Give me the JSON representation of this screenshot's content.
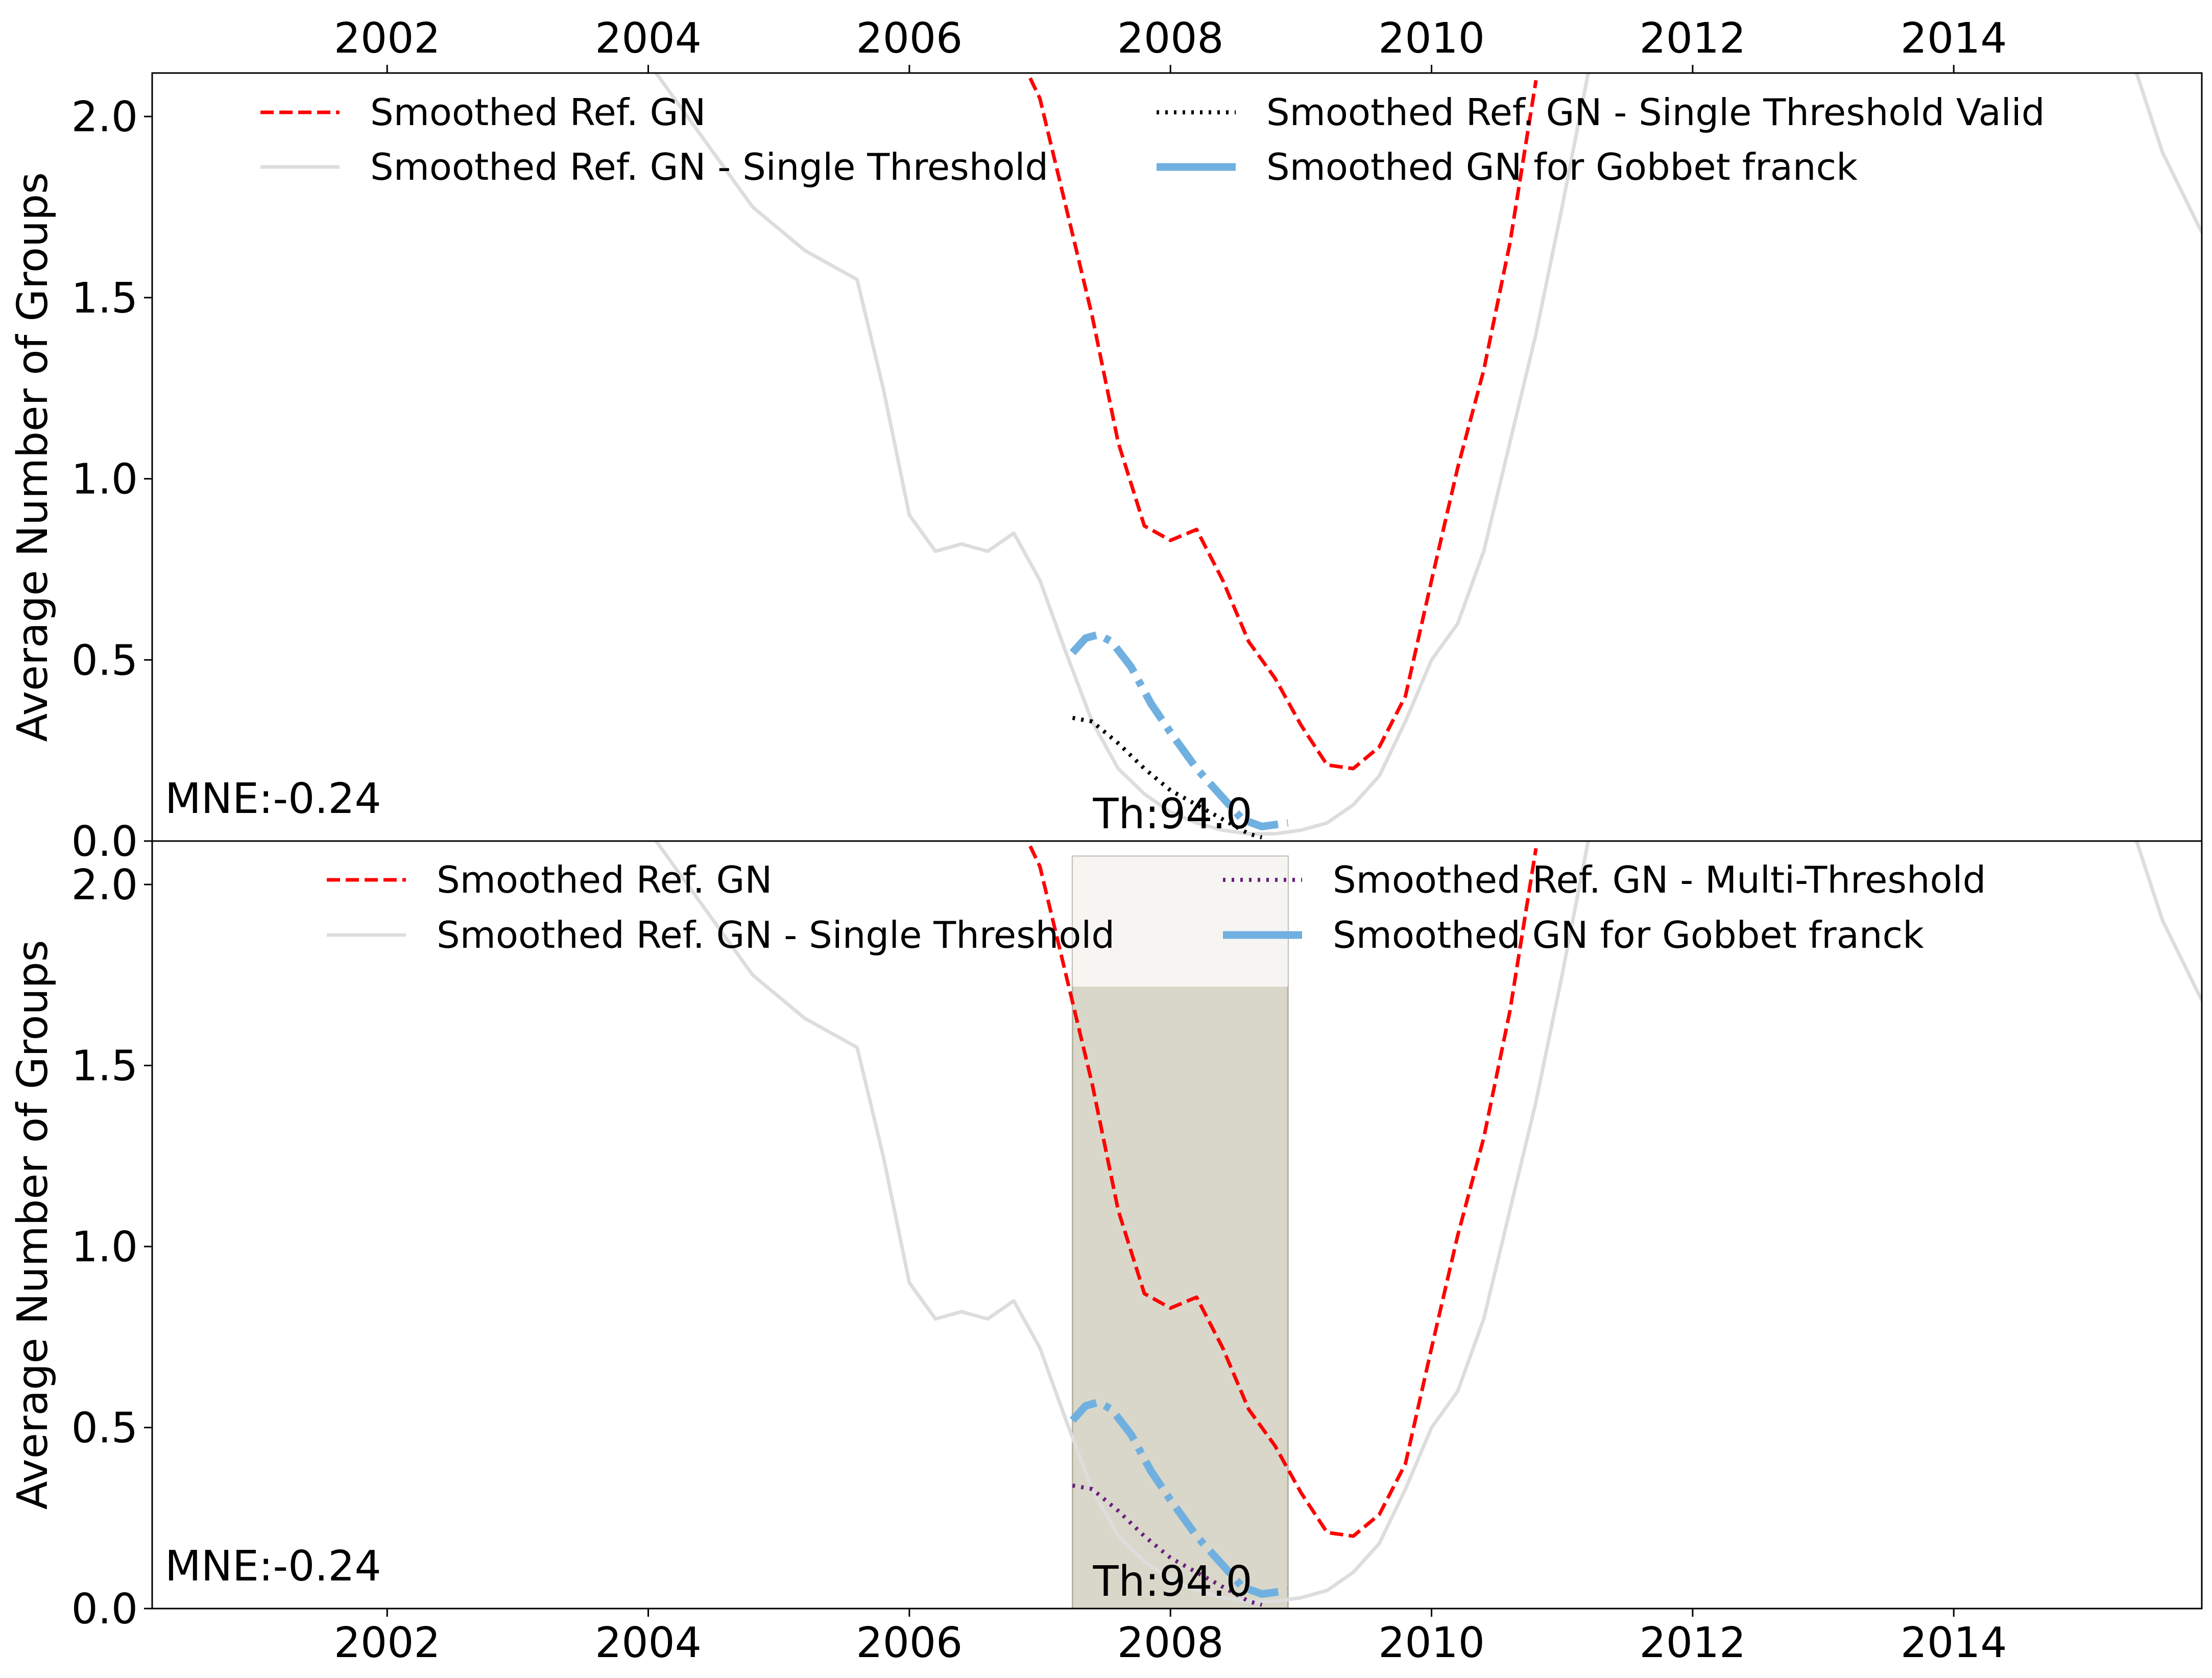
{
  "chart_data": [
    {
      "type": "line",
      "title": "",
      "xlabel": "",
      "ylabel": "Average Number of Groups",
      "xlim": [
        2000.2,
        2015.9
      ],
      "ylim": [
        0.0,
        2.12
      ],
      "xticks": [
        2002,
        2004,
        2006,
        2008,
        2010,
        2012,
        2014
      ],
      "xtick_labels": [
        "2002",
        "2004",
        "2006",
        "2008",
        "2010",
        "2012",
        "2014"
      ],
      "yticks": [
        0.0,
        0.5,
        1.0,
        1.5,
        2.0
      ],
      "ytick_labels": [
        "0.0",
        "0.5",
        "1.0",
        "1.5",
        "2.0"
      ],
      "xtick_position": "top",
      "grid": false,
      "legend_position": "top",
      "annotations": {
        "mne": "MNE:-0.24",
        "threshold": "Th:94.0"
      },
      "series": [
        {
          "name": "Smoothed Ref. GN",
          "color": "#ff0000",
          "style": "dashed",
          "x": [
            2006.8,
            2007.0,
            2007.2,
            2007.4,
            2007.6,
            2007.8,
            2008.0,
            2008.2,
            2008.4,
            2008.6,
            2008.8,
            2009.0,
            2009.2,
            2009.4,
            2009.6,
            2009.8,
            2010.0,
            2010.2,
            2010.4,
            2010.6,
            2010.8
          ],
          "y": [
            2.2,
            2.05,
            1.75,
            1.45,
            1.1,
            0.87,
            0.83,
            0.86,
            0.72,
            0.55,
            0.45,
            0.32,
            0.21,
            0.2,
            0.26,
            0.4,
            0.72,
            1.03,
            1.3,
            1.65,
            2.1
          ]
        },
        {
          "name": "Smoothed Ref. GN - Single Threshold",
          "color": "#dddddd",
          "style": "solid",
          "x": [
            2004.0,
            2004.4,
            2004.8,
            2005.2,
            2005.6,
            2005.8,
            2006.0,
            2006.2,
            2006.4,
            2006.6,
            2006.8,
            2007.0,
            2007.2,
            2007.4,
            2007.6,
            2007.8,
            2008.0,
            2008.2,
            2008.4,
            2008.6,
            2008.8,
            2009.0,
            2009.2,
            2009.4,
            2009.6,
            2009.8,
            2010.0,
            2010.2,
            2010.4,
            2010.6,
            2010.8,
            2011.0,
            2011.2
          ],
          "y": [
            2.15,
            1.95,
            1.75,
            1.63,
            1.55,
            1.25,
            0.9,
            0.8,
            0.82,
            0.8,
            0.85,
            0.72,
            0.52,
            0.33,
            0.2,
            0.13,
            0.08,
            0.05,
            0.03,
            0.02,
            0.02,
            0.03,
            0.05,
            0.1,
            0.18,
            0.33,
            0.5,
            0.6,
            0.8,
            1.1,
            1.4,
            1.75,
            2.12
          ]
        },
        {
          "name": "Smoothed Ref. GN - Single Threshold",
          "color": "#dddddd",
          "style": "solid",
          "x": [
            2015.4,
            2015.6,
            2015.9
          ],
          "y": [
            2.12,
            1.9,
            1.68
          ]
        },
        {
          "name": "Smoothed Ref. GN - Single Threshold Valid",
          "color": "#000000",
          "style": "dotted",
          "x": [
            2007.25,
            2007.4,
            2007.6,
            2007.8,
            2008.0,
            2008.2,
            2008.4,
            2008.6,
            2008.7
          ],
          "y": [
            0.34,
            0.33,
            0.27,
            0.2,
            0.14,
            0.1,
            0.06,
            0.02,
            0.01
          ]
        },
        {
          "name": "Smoothed GN for Gobbet franck",
          "color": "#70b0e0",
          "style": "dashdot",
          "x": [
            2007.25,
            2007.35,
            2007.45,
            2007.55,
            2007.7,
            2007.85,
            2008.0,
            2008.2,
            2008.4,
            2008.55,
            2008.7,
            2008.9
          ],
          "y": [
            0.52,
            0.56,
            0.57,
            0.55,
            0.48,
            0.38,
            0.3,
            0.2,
            0.12,
            0.06,
            0.04,
            0.05
          ]
        }
      ]
    },
    {
      "type": "line",
      "title": "",
      "xlabel": "",
      "ylabel": "Average Number of Groups",
      "xlim": [
        2000.2,
        2015.9
      ],
      "ylim": [
        0.0,
        2.12
      ],
      "xticks": [
        2002,
        2004,
        2006,
        2008,
        2010,
        2012,
        2014
      ],
      "xtick_labels": [
        "2002",
        "2004",
        "2006",
        "2008",
        "2010",
        "2012",
        "2014"
      ],
      "yticks": [
        0.0,
        0.5,
        1.0,
        1.5,
        2.0
      ],
      "ytick_labels": [
        "0.0",
        "0.5",
        "1.0",
        "1.5",
        "2.0"
      ],
      "xtick_position": "bottom",
      "grid": false,
      "legend_position": "top",
      "shaded_region": {
        "x": [
          2007.25,
          2008.9
        ],
        "color": "#d9d7c9"
      },
      "annotations": {
        "mne": "MNE:-0.24",
        "threshold": "Th:94.0"
      },
      "series": [
        {
          "name": "Smoothed Ref. GN",
          "color": "#ff0000",
          "style": "dashed",
          "x": [
            2006.8,
            2007.0,
            2007.2,
            2007.4,
            2007.6,
            2007.8,
            2008.0,
            2008.2,
            2008.4,
            2008.6,
            2008.8,
            2009.0,
            2009.2,
            2009.4,
            2009.6,
            2009.8,
            2010.0,
            2010.2,
            2010.4,
            2010.6,
            2010.8
          ],
          "y": [
            2.2,
            2.05,
            1.75,
            1.45,
            1.1,
            0.87,
            0.83,
            0.86,
            0.72,
            0.55,
            0.45,
            0.32,
            0.21,
            0.2,
            0.26,
            0.4,
            0.72,
            1.03,
            1.3,
            1.65,
            2.1
          ]
        },
        {
          "name": "Smoothed Ref. GN - Single Threshold",
          "color": "#dddddd",
          "style": "solid",
          "x": [
            2004.0,
            2004.4,
            2004.8,
            2005.2,
            2005.6,
            2005.8,
            2006.0,
            2006.2,
            2006.4,
            2006.6,
            2006.8,
            2007.0,
            2007.2,
            2007.4,
            2007.6,
            2007.8,
            2008.0,
            2008.2,
            2008.4,
            2008.6,
            2008.8,
            2009.0,
            2009.2,
            2009.4,
            2009.6,
            2009.8,
            2010.0,
            2010.2,
            2010.4,
            2010.6,
            2010.8,
            2011.0,
            2011.2
          ],
          "y": [
            2.15,
            1.95,
            1.75,
            1.63,
            1.55,
            1.25,
            0.9,
            0.8,
            0.82,
            0.8,
            0.85,
            0.72,
            0.52,
            0.33,
            0.2,
            0.13,
            0.08,
            0.05,
            0.03,
            0.02,
            0.02,
            0.03,
            0.05,
            0.1,
            0.18,
            0.33,
            0.5,
            0.6,
            0.8,
            1.1,
            1.4,
            1.75,
            2.12
          ]
        },
        {
          "name": "Smoothed Ref. GN - Single Threshold",
          "color": "#dddddd",
          "style": "solid",
          "x": [
            2015.4,
            2015.6,
            2015.9
          ],
          "y": [
            2.12,
            1.9,
            1.68
          ]
        },
        {
          "name": "Smoothed Ref. GN - Multi-Threshold",
          "color": "#6b1f7e",
          "style": "dotted",
          "x": [
            2007.25,
            2007.4,
            2007.6,
            2007.8,
            2008.0,
            2008.2,
            2008.4,
            2008.6,
            2008.7
          ],
          "y": [
            0.34,
            0.33,
            0.27,
            0.2,
            0.14,
            0.1,
            0.06,
            0.02,
            0.01
          ]
        },
        {
          "name": "Smoothed GN for Gobbet franck",
          "color": "#70b0e0",
          "style": "dashdot",
          "x": [
            2007.25,
            2007.35,
            2007.45,
            2007.55,
            2007.7,
            2007.85,
            2008.0,
            2008.2,
            2008.4,
            2008.55,
            2008.7,
            2008.9
          ],
          "y": [
            0.52,
            0.56,
            0.57,
            0.55,
            0.48,
            0.38,
            0.3,
            0.2,
            0.12,
            0.06,
            0.04,
            0.05
          ]
        }
      ]
    }
  ],
  "legends": [
    [
      {
        "label": "Smoothed Ref. GN",
        "color": "#ff0000",
        "style": "dashed"
      },
      {
        "label": "Smoothed Ref. GN - Single Threshold",
        "color": "#dddddd",
        "style": "solid"
      },
      {
        "label": "Smoothed Ref. GN - Single Threshold Valid",
        "color": "#000000",
        "style": "dotted"
      },
      {
        "label": "Smoothed GN for Gobbet franck",
        "color": "#70b0e0",
        "style": "thick"
      }
    ],
    [
      {
        "label": "Smoothed Ref. GN",
        "color": "#ff0000",
        "style": "dashed"
      },
      {
        "label": "Smoothed Ref. GN - Single Threshold",
        "color": "#dddddd",
        "style": "solid"
      },
      {
        "label": "Smoothed Ref. GN - Multi-Threshold",
        "color": "#6b1f7e",
        "style": "dotted"
      },
      {
        "label": "Smoothed GN for Gobbet franck",
        "color": "#70b0e0",
        "style": "thick"
      }
    ]
  ]
}
